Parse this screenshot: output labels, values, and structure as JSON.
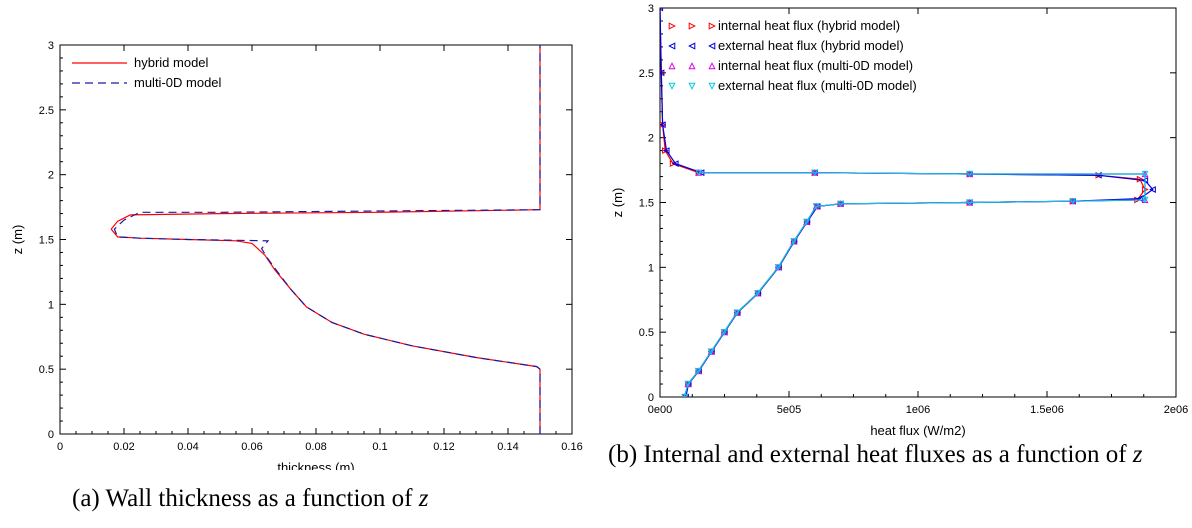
{
  "chart_data": [
    {
      "type": "line",
      "xlabel": "thickness (m)",
      "ylabel": "z (m)",
      "xlim": [
        0,
        0.16
      ],
      "ylim": [
        0,
        3
      ],
      "xticks": [
        "0",
        "0.02",
        "0.04",
        "0.06",
        "0.08",
        "0.1",
        "0.12",
        "0.14",
        "0.16"
      ],
      "yticks": [
        "0",
        "0.5",
        "1",
        "1.5",
        "2",
        "2.5",
        "3"
      ],
      "legend_position": "top-left",
      "grid": false,
      "series": [
        {
          "name": "hybrid model",
          "color": "#ff0000",
          "style": "solid",
          "points": [
            [
              0.15,
              0
            ],
            [
              0.15,
              0.5
            ],
            [
              0.149,
              0.52
            ],
            [
              0.13,
              0.59
            ],
            [
              0.11,
              0.68
            ],
            [
              0.095,
              0.77
            ],
            [
              0.085,
              0.86
            ],
            [
              0.077,
              0.98
            ],
            [
              0.072,
              1.12
            ],
            [
              0.067,
              1.27
            ],
            [
              0.064,
              1.38
            ],
            [
              0.06,
              1.47
            ],
            [
              0.055,
              1.49
            ],
            [
              0.04,
              1.5
            ],
            [
              0.025,
              1.51
            ],
            [
              0.018,
              1.52
            ],
            [
              0.016,
              1.58
            ],
            [
              0.018,
              1.64
            ],
            [
              0.022,
              1.69
            ],
            [
              0.05,
              1.7
            ],
            [
              0.1,
              1.71
            ],
            [
              0.15,
              1.73
            ],
            [
              0.15,
              3
            ]
          ]
        },
        {
          "name": "multi-0D model",
          "color": "#1a1aa8",
          "style": "dashed",
          "points": [
            [
              0.15,
              0
            ],
            [
              0.15,
              0.5
            ],
            [
              0.149,
              0.52
            ],
            [
              0.13,
              0.59
            ],
            [
              0.11,
              0.68
            ],
            [
              0.095,
              0.77
            ],
            [
              0.085,
              0.86
            ],
            [
              0.077,
              0.98
            ],
            [
              0.072,
              1.12
            ],
            [
              0.068,
              1.25
            ],
            [
              0.065,
              1.35
            ],
            [
              0.063,
              1.43
            ],
            [
              0.065,
              1.49
            ],
            [
              0.04,
              1.5
            ],
            [
              0.025,
              1.51
            ],
            [
              0.018,
              1.52
            ],
            [
              0.017,
              1.58
            ],
            [
              0.02,
              1.65
            ],
            [
              0.025,
              1.71
            ],
            [
              0.05,
              1.71
            ],
            [
              0.1,
              1.72
            ],
            [
              0.15,
              1.73
            ],
            [
              0.15,
              3
            ]
          ]
        }
      ]
    },
    {
      "type": "line",
      "xlabel": "heat flux (W/m2)",
      "ylabel": "z (m)",
      "xlim": [
        0,
        2000000
      ],
      "ylim": [
        0,
        3
      ],
      "xticks": [
        "0e00",
        "5e05",
        "1e06",
        "1.5e06",
        "2e06"
      ],
      "yticks": [
        "0",
        "0.5",
        "1",
        "1.5",
        "2",
        "2.5",
        "3"
      ],
      "legend_position": "top-left",
      "grid": false,
      "series": [
        {
          "name": "internal heat flux (hybrid model)",
          "color": "#ff0000",
          "marker": "triangle-right",
          "points": [
            [
              100000,
              0
            ],
            [
              110000,
              0.1
            ],
            [
              150000,
              0.2
            ],
            [
              200000,
              0.35
            ],
            [
              250000,
              0.5
            ],
            [
              300000,
              0.65
            ],
            [
              380000,
              0.8
            ],
            [
              460000,
              1.0
            ],
            [
              520000,
              1.2
            ],
            [
              570000,
              1.35
            ],
            [
              610000,
              1.47
            ],
            [
              700000,
              1.49
            ],
            [
              1200000,
              1.5
            ],
            [
              1600000,
              1.51
            ],
            [
              1850000,
              1.52
            ],
            [
              1880000,
              1.6
            ],
            [
              1860000,
              1.68
            ],
            [
              1700000,
              1.71
            ],
            [
              1200000,
              1.72
            ],
            [
              600000,
              1.73
            ],
            [
              150000,
              1.73
            ],
            [
              50000,
              1.8
            ],
            [
              20000,
              1.9
            ],
            [
              10000,
              2.1
            ],
            [
              5000,
              2.5
            ],
            [
              0,
              3
            ]
          ]
        },
        {
          "name": "external heat flux (hybrid model)",
          "color": "#0000dd",
          "marker": "triangle-left",
          "points": [
            [
              100000,
              0
            ],
            [
              110000,
              0.1
            ],
            [
              150000,
              0.2
            ],
            [
              200000,
              0.35
            ],
            [
              250000,
              0.5
            ],
            [
              300000,
              0.65
            ],
            [
              380000,
              0.8
            ],
            [
              460000,
              1.0
            ],
            [
              520000,
              1.2
            ],
            [
              570000,
              1.35
            ],
            [
              610000,
              1.47
            ],
            [
              700000,
              1.49
            ],
            [
              1200000,
              1.5
            ],
            [
              1600000,
              1.51
            ],
            [
              1860000,
              1.53
            ],
            [
              1910000,
              1.6
            ],
            [
              1880000,
              1.67
            ],
            [
              1700000,
              1.71
            ],
            [
              1200000,
              1.72
            ],
            [
              600000,
              1.73
            ],
            [
              160000,
              1.73
            ],
            [
              60000,
              1.8
            ],
            [
              25000,
              1.9
            ],
            [
              10000,
              2.1
            ],
            [
              5000,
              2.5
            ],
            [
              0,
              3
            ]
          ]
        },
        {
          "name": "internal heat flux (multi-0D model)",
          "color": "#dd00dd",
          "marker": "triangle-up",
          "points": [
            [
              95000,
              0
            ],
            [
              108000,
              0.1
            ],
            [
              148000,
              0.2
            ],
            [
              198000,
              0.35
            ],
            [
              248000,
              0.5
            ],
            [
              298000,
              0.65
            ],
            [
              378000,
              0.8
            ],
            [
              458000,
              1.0
            ],
            [
              518000,
              1.2
            ],
            [
              568000,
              1.35
            ],
            [
              605000,
              1.47
            ],
            [
              700000,
              1.49
            ],
            [
              1200000,
              1.5
            ],
            [
              1600000,
              1.51
            ],
            [
              1880000,
              1.52
            ],
            [
              1880000,
              1.72
            ],
            [
              1200000,
              1.72
            ],
            [
              600000,
              1.73
            ],
            [
              150000,
              1.73
            ]
          ]
        },
        {
          "name": "external heat flux (multi-0D model)",
          "color": "#00c8e6",
          "marker": "triangle-down",
          "points": [
            [
              95000,
              0
            ],
            [
              108000,
              0.1
            ],
            [
              148000,
              0.2
            ],
            [
              198000,
              0.35
            ],
            [
              248000,
              0.5
            ],
            [
              298000,
              0.65
            ],
            [
              378000,
              0.8
            ],
            [
              458000,
              1.0
            ],
            [
              518000,
              1.2
            ],
            [
              568000,
              1.35
            ],
            [
              605000,
              1.47
            ],
            [
              700000,
              1.49
            ],
            [
              1200000,
              1.5
            ],
            [
              1600000,
              1.51
            ],
            [
              1880000,
              1.52
            ],
            [
              1880000,
              1.72
            ],
            [
              1200000,
              1.72
            ],
            [
              600000,
              1.73
            ],
            [
              150000,
              1.73
            ]
          ]
        }
      ]
    }
  ],
  "captions": {
    "a_prefix": "(a) Wall thickness as a function of ",
    "a_var": "z",
    "b_prefix": "(b) Internal and external heat fluxes as a function of ",
    "b_var": "z"
  }
}
